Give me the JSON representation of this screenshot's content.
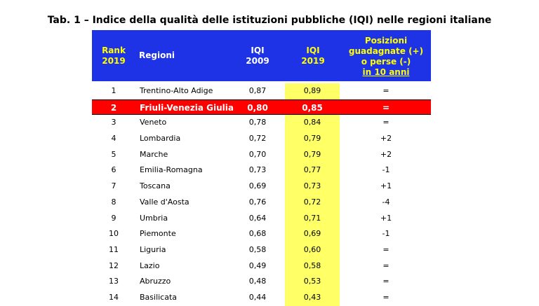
{
  "title": "Tab. 1 – Indice della qualità delle istituzioni pubbliche (IQI) nelle regioni italiane",
  "header": {
    "rank_line1": "Rank",
    "rank_line2": "2019",
    "regioni": "Regioni",
    "iqi2009_line1": "IQI",
    "iqi2009_line2": "2009",
    "iqi2019_line1": "IQI",
    "iqi2019_line2": "2019",
    "pos_line1": "Posizioni",
    "pos_line2": "guadagnate (+)",
    "pos_line3": "o perse (-)",
    "pos_line4": "in 10 anni"
  },
  "rows": [
    {
      "rank": "1",
      "region": "Trentino-Alto Adige",
      "iqi2009": "0,87",
      "iqi2019": "0,89",
      "change": "="
    },
    {
      "rank": "2",
      "region": "Friuli-Venezia Giulia",
      "iqi2009": "0,80",
      "iqi2019": "0,85",
      "change": "="
    },
    {
      "rank": "3",
      "region": "Veneto",
      "iqi2009": "0,78",
      "iqi2019": "0,84",
      "change": "="
    },
    {
      "rank": "4",
      "region": "Lombardia",
      "iqi2009": "0,72",
      "iqi2019": "0,79",
      "change": "+2"
    },
    {
      "rank": "5",
      "region": "Marche",
      "iqi2009": "0,70",
      "iqi2019": "0,79",
      "change": "+2"
    },
    {
      "rank": "6",
      "region": "Emilia-Romagna",
      "iqi2009": "0,73",
      "iqi2019": "0,77",
      "change": "-1"
    },
    {
      "rank": "7",
      "region": "Toscana",
      "iqi2009": "0,69",
      "iqi2019": "0,73",
      "change": "+1"
    },
    {
      "rank": "8",
      "region": "Valle d'Aosta",
      "iqi2009": "0,76",
      "iqi2019": "0,72",
      "change": "-4"
    },
    {
      "rank": "9",
      "region": "Umbria",
      "iqi2009": "0,64",
      "iqi2019": "0,71",
      "change": "+1"
    },
    {
      "rank": "10",
      "region": "Piemonte",
      "iqi2009": "0,68",
      "iqi2019": "0,69",
      "change": "-1"
    },
    {
      "rank": "11",
      "region": "Liguria",
      "iqi2009": "0,58",
      "iqi2019": "0,60",
      "change": "="
    },
    {
      "rank": "12",
      "region": "Lazio",
      "iqi2009": "0,49",
      "iqi2019": "0,58",
      "change": "="
    },
    {
      "rank": "13",
      "region": "Abruzzo",
      "iqi2009": "0,48",
      "iqi2019": "0,53",
      "change": "="
    },
    {
      "rank": "14",
      "region": "Basilicata",
      "iqi2009": "0,44",
      "iqi2019": "0,43",
      "change": "="
    }
  ],
  "colors": {
    "header_bg": "#1f33e6",
    "header_accent": "#ffff00",
    "highlight_row": "#ff0000",
    "iqi2019_column": "#ffff66"
  }
}
